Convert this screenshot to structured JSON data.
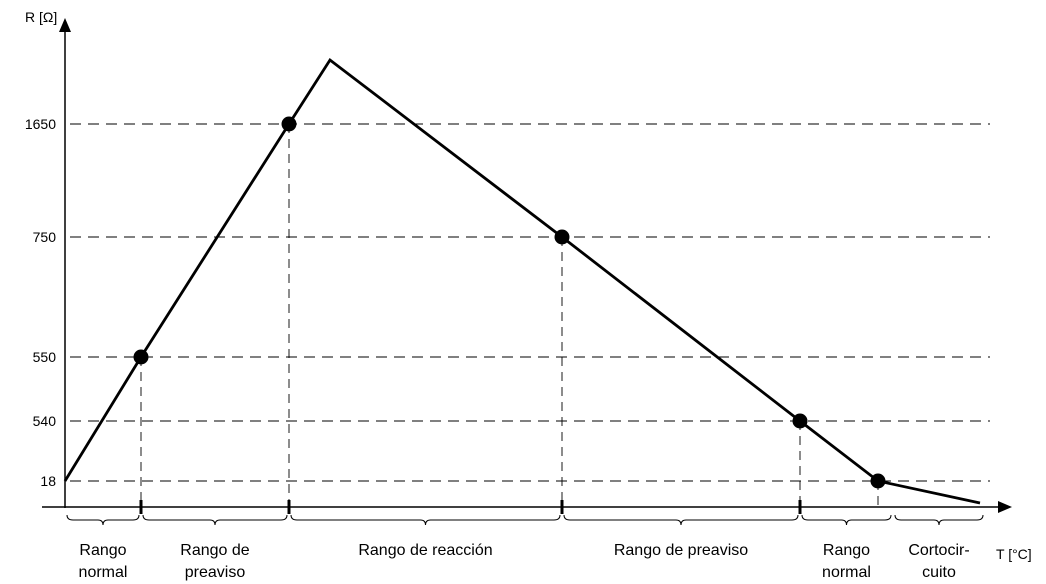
{
  "chart_data": {
    "type": "line",
    "ylabel": "R [Ω]",
    "xlabel": "T [°C]",
    "y_ticks": [
      "1650",
      "750",
      "550",
      "540",
      "18"
    ],
    "series": [
      {
        "points": [
          {
            "r": "18"
          },
          {
            "r": "550",
            "marker": true
          },
          {
            "r": "1650",
            "marker": true
          },
          {
            "r": "peak"
          },
          {
            "r": "750",
            "marker": true
          },
          {
            "r": "540",
            "marker": true
          },
          {
            "r": "18",
            "marker": true
          },
          {
            "r": "end"
          }
        ]
      }
    ],
    "ranges": [
      {
        "lines": [
          "Rango",
          "normal"
        ]
      },
      {
        "lines": [
          "Rango de",
          "preaviso"
        ]
      },
      {
        "lines": [
          "Rango de reacción"
        ]
      },
      {
        "lines": [
          "Rango de preaviso"
        ]
      },
      {
        "lines": [
          "Rango",
          "normal"
        ]
      },
      {
        "lines": [
          "Cortocir-",
          "cuito"
        ]
      }
    ],
    "grid": true,
    "line_color": "#000000"
  }
}
